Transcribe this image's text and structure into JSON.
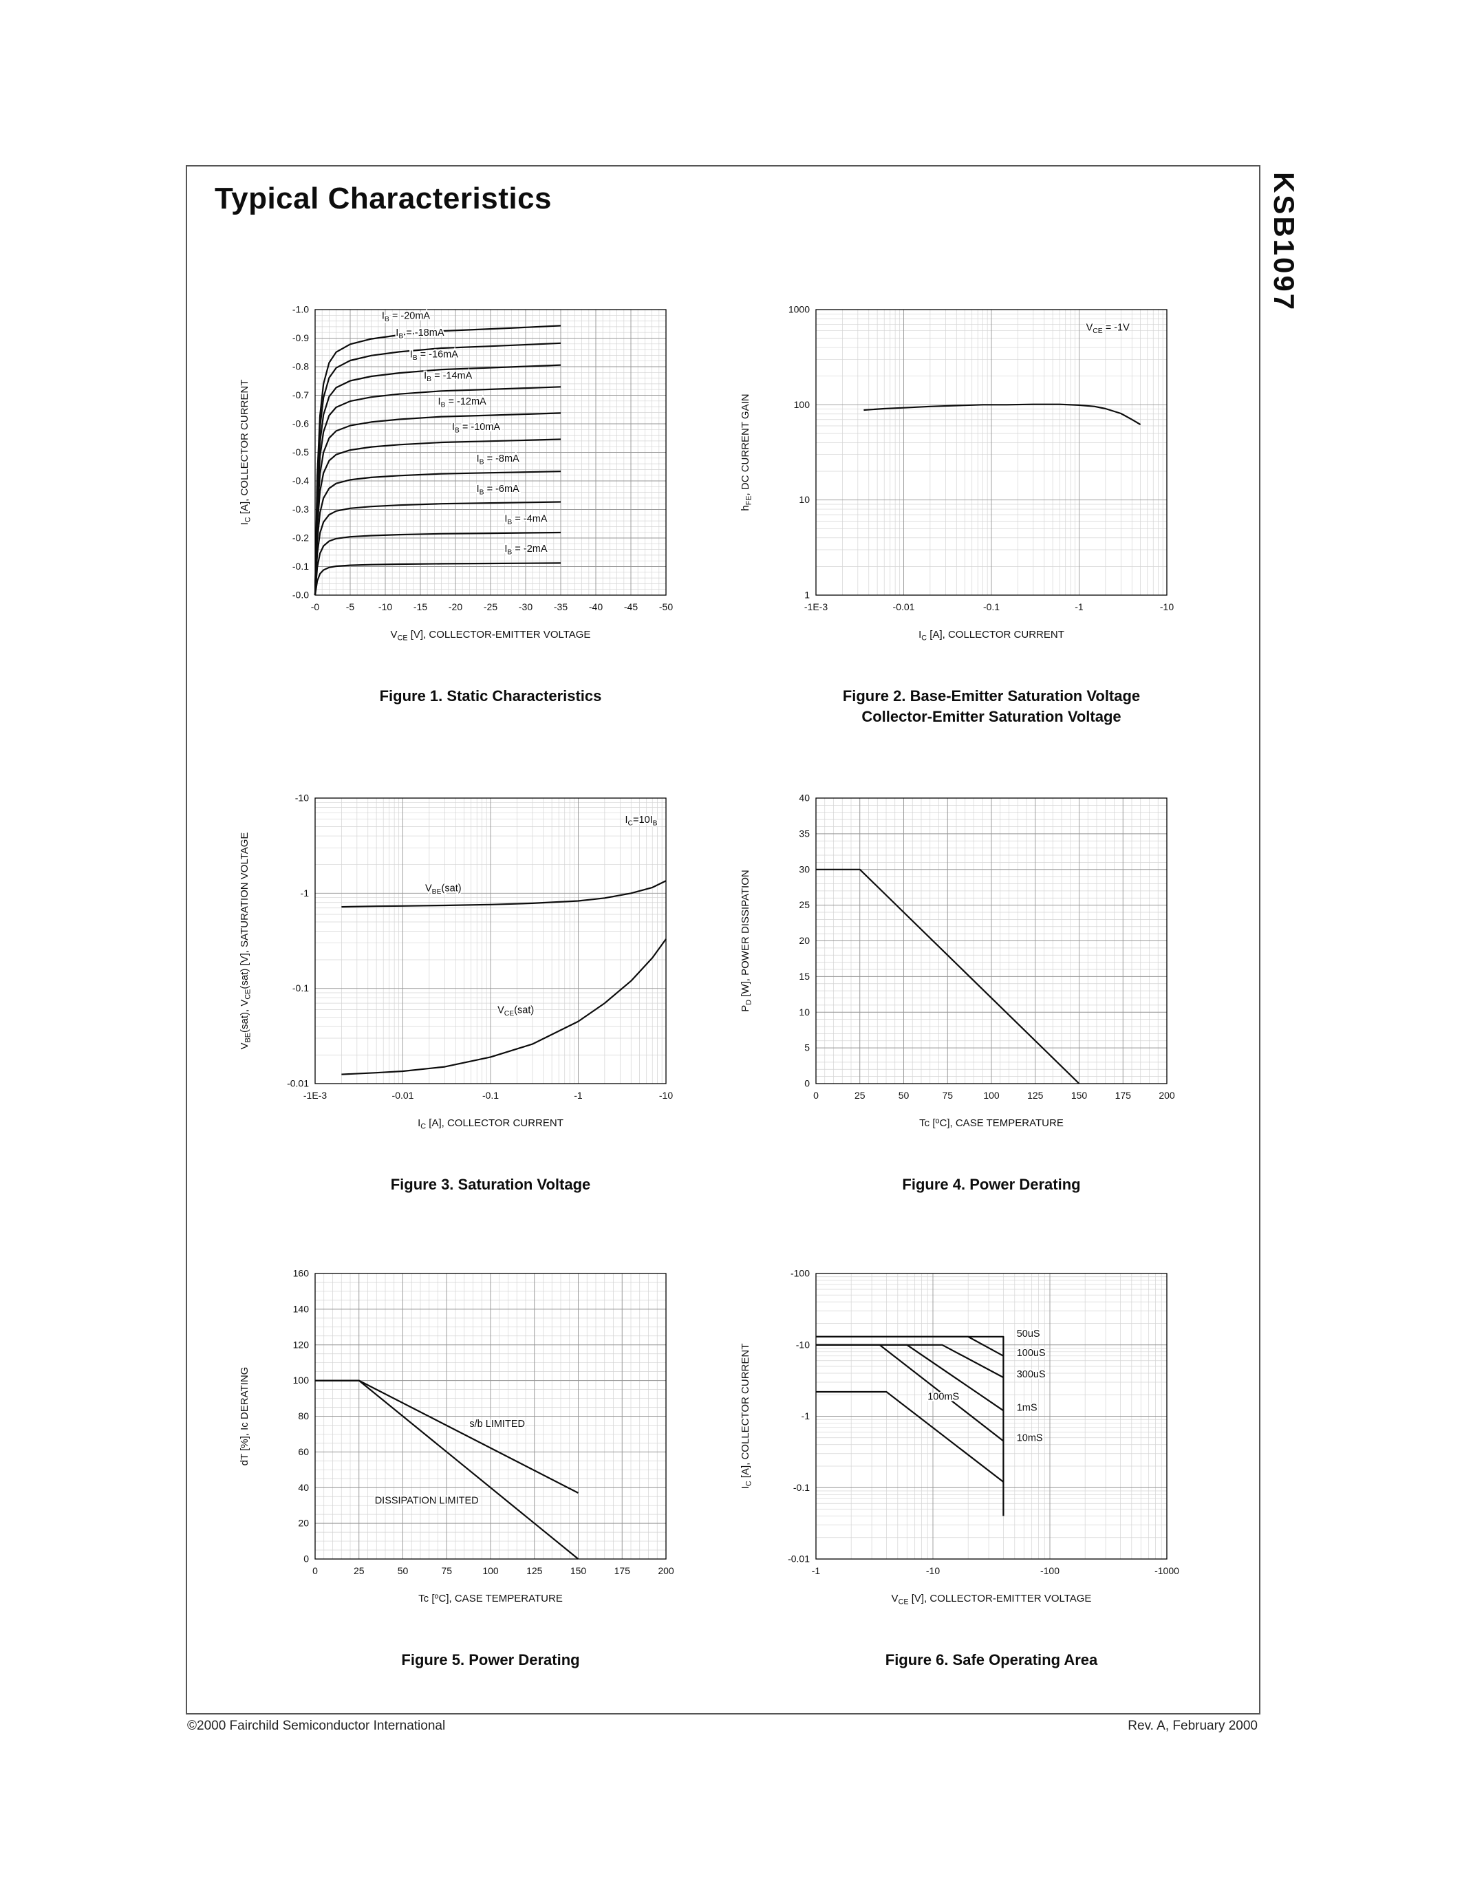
{
  "page": {
    "title": "Typical Characteristics",
    "part_number": "KSB1097",
    "footer_left": "©2000 Fairchild Semiconductor International",
    "footer_right": "Rev. A, February 2000"
  },
  "chart_data": [
    {
      "type": "line",
      "caption": "Figure 1. Static Characteristics",
      "xlabel": "V~CE~ [V], COLLECTOR-EMITTER VOLTAGE",
      "ylabel": "I~C~ [A], COLLECTOR CURRENT",
      "x": {
        "scale": "linear",
        "min": 0,
        "max": 50,
        "minor": 1,
        "ticks": [
          [
            0,
            "-0"
          ],
          [
            5,
            "-5"
          ],
          [
            10,
            "-10"
          ],
          [
            15,
            "-15"
          ],
          [
            20,
            "-20"
          ],
          [
            25,
            "-25"
          ],
          [
            30,
            "-30"
          ],
          [
            35,
            "-35"
          ],
          [
            40,
            "-40"
          ],
          [
            45,
            "-45"
          ],
          [
            50,
            "-50"
          ]
        ]
      },
      "y": {
        "scale": "linear",
        "min": 0,
        "max": 1,
        "minor": 0.02,
        "ticks": [
          [
            0,
            "-0.0"
          ],
          [
            0.1,
            "-0.1"
          ],
          [
            0.2,
            "-0.2"
          ],
          [
            0.3,
            "-0.3"
          ],
          [
            0.4,
            "-0.4"
          ],
          [
            0.5,
            "-0.5"
          ],
          [
            0.6,
            "-0.6"
          ],
          [
            0.7,
            "-0.7"
          ],
          [
            0.8,
            "-0.8"
          ],
          [
            0.9,
            "-0.9"
          ],
          [
            1,
            "-1.0"
          ]
        ]
      },
      "knee_x": [
        0,
        0.3,
        0.7,
        1.2,
        2,
        3,
        5,
        8,
        12,
        18,
        25,
        30,
        35
      ],
      "knee_f": [
        0,
        0.45,
        0.68,
        0.8,
        0.88,
        0.92,
        0.95,
        0.97,
        0.985,
        1,
        1.008,
        1.014,
        1.02
      ],
      "series": [
        {
          "name": "I~B~ = -20mA",
          "sat": 0.925,
          "label_at": [
            9.5,
            0.968
          ],
          "anchor": "start"
        },
        {
          "name": "I~B~ = -18mA",
          "sat": 0.865,
          "label_at": [
            11.5,
            0.908
          ],
          "anchor": "start"
        },
        {
          "name": "I~B~ = -16mA",
          "sat": 0.79,
          "label_at": [
            13.5,
            0.833
          ],
          "anchor": "start"
        },
        {
          "name": "I~B~ = -14mA",
          "sat": 0.715,
          "label_at": [
            15.5,
            0.758
          ],
          "anchor": "start"
        },
        {
          "name": "I~B~ = -12mA",
          "sat": 0.625,
          "label_at": [
            17.5,
            0.668
          ],
          "anchor": "start"
        },
        {
          "name": "I~B~ = -10mA",
          "sat": 0.535,
          "label_at": [
            19.5,
            0.578
          ],
          "anchor": "start"
        },
        {
          "name": "I~B~ = -8mA",
          "sat": 0.425,
          "label_at": [
            23,
            0.468
          ],
          "anchor": "start"
        },
        {
          "name": "I~B~ = -6mA",
          "sat": 0.32,
          "label_at": [
            23,
            0.362
          ],
          "anchor": "start"
        },
        {
          "name": "I~B~ = -4mA",
          "sat": 0.215,
          "label_at": [
            27,
            0.257
          ],
          "anchor": "start"
        },
        {
          "name": "I~B~ = -2mA",
          "sat": 0.11,
          "label_at": [
            27,
            0.152
          ],
          "anchor": "start"
        }
      ]
    },
    {
      "type": "line",
      "caption": "Figure 2. Base-Emitter Saturation Voltage\nCollector-Emitter Saturation Voltage",
      "xlabel": "I~C~ [A], COLLECTOR CURRENT",
      "ylabel": "h~FE~, DC CURRENT GAIN",
      "x": {
        "scale": "log",
        "min": 0.001,
        "max": 10,
        "ticks": [
          [
            0.001,
            "-1E-3"
          ],
          [
            0.01,
            "-0.01"
          ],
          [
            0.1,
            "-0.1"
          ],
          [
            1,
            "-1"
          ],
          [
            10,
            "-10"
          ]
        ]
      },
      "y": {
        "scale": "log",
        "min": 1,
        "max": 1000,
        "ticks": [
          [
            1,
            "1"
          ],
          [
            10,
            "10"
          ],
          [
            100,
            "100"
          ],
          [
            1000,
            "1000"
          ]
        ]
      },
      "annotations": [
        {
          "text": "V~CE~ = -1V",
          "at": [
            1.2,
            600
          ],
          "anchor": "start"
        }
      ],
      "series": [
        {
          "name": "h~FE~",
          "points": [
            [
              0.0035,
              88
            ],
            [
              0.006,
              91
            ],
            [
              0.01,
              93
            ],
            [
              0.02,
              96
            ],
            [
              0.04,
              98
            ],
            [
              0.08,
              100
            ],
            [
              0.15,
              100
            ],
            [
              0.3,
              101
            ],
            [
              0.6,
              101
            ],
            [
              1,
              99
            ],
            [
              1.5,
              96
            ],
            [
              2,
              91
            ],
            [
              3,
              81
            ],
            [
              4,
              70
            ],
            [
              5,
              62
            ]
          ]
        }
      ]
    },
    {
      "type": "line",
      "caption": "Figure 3. Saturation Voltage",
      "xlabel": "I~C~ [A], COLLECTOR CURRENT",
      "ylabel": "V~BE~(sat), V~CE~(sat) [V], SATURATION VOLTAGE",
      "x": {
        "scale": "log",
        "min": 0.001,
        "max": 10,
        "ticks": [
          [
            0.001,
            "-1E-3"
          ],
          [
            0.01,
            "-0.01"
          ],
          [
            0.1,
            "-0.1"
          ],
          [
            1,
            "-1"
          ],
          [
            10,
            "-10"
          ]
        ]
      },
      "y": {
        "scale": "log",
        "min": 0.01,
        "max": 10,
        "ticks": [
          [
            0.01,
            "-0.01"
          ],
          [
            0.1,
            "-0.1"
          ],
          [
            1,
            "-1"
          ],
          [
            10,
            "-10"
          ]
        ]
      },
      "annotations": [
        {
          "text": "I~C~=10I~B~",
          "at": [
            8,
            5.5
          ],
          "anchor": "end"
        }
      ],
      "series": [
        {
          "name": "V~BE~(sat)",
          "points": [
            [
              0.002,
              0.72
            ],
            [
              0.005,
              0.73
            ],
            [
              0.01,
              0.735
            ],
            [
              0.03,
              0.745
            ],
            [
              0.1,
              0.76
            ],
            [
              0.3,
              0.785
            ],
            [
              1,
              0.83
            ],
            [
              2,
              0.89
            ],
            [
              4,
              1.0
            ],
            [
              7,
              1.15
            ],
            [
              10,
              1.35
            ]
          ],
          "label_at": [
            0.018,
            1.05
          ],
          "anchor": "start"
        },
        {
          "name": "V~CE~(sat)",
          "points": [
            [
              0.002,
              0.0125
            ],
            [
              0.005,
              0.013
            ],
            [
              0.01,
              0.0135
            ],
            [
              0.03,
              0.015
            ],
            [
              0.1,
              0.019
            ],
            [
              0.3,
              0.026
            ],
            [
              1,
              0.045
            ],
            [
              2,
              0.07
            ],
            [
              4,
              0.12
            ],
            [
              7,
              0.21
            ],
            [
              10,
              0.33
            ]
          ],
          "label_at": [
            0.12,
            0.055
          ],
          "anchor": "start"
        }
      ]
    },
    {
      "type": "line",
      "caption": "Figure 4. Power Derating",
      "xlabel": "Tc [^o^C], CASE TEMPERATURE",
      "ylabel": "P~D~ [W], POWER DISSIPATION",
      "x": {
        "scale": "linear",
        "min": 0,
        "max": 200,
        "minor": 5,
        "ticks": [
          [
            0,
            "0"
          ],
          [
            25,
            "25"
          ],
          [
            50,
            "50"
          ],
          [
            75,
            "75"
          ],
          [
            100,
            "100"
          ],
          [
            125,
            "125"
          ],
          [
            150,
            "150"
          ],
          [
            175,
            "175"
          ],
          [
            200,
            "200"
          ]
        ]
      },
      "y": {
        "scale": "linear",
        "min": 0,
        "max": 40,
        "minor": 1,
        "ticks": [
          [
            0,
            "0"
          ],
          [
            5,
            "5"
          ],
          [
            10,
            "10"
          ],
          [
            15,
            "15"
          ],
          [
            20,
            "20"
          ],
          [
            25,
            "25"
          ],
          [
            30,
            "30"
          ],
          [
            35,
            "35"
          ],
          [
            40,
            "40"
          ]
        ]
      },
      "series": [
        {
          "name": "P~D~",
          "points": [
            [
              0,
              30
            ],
            [
              25,
              30
            ],
            [
              150,
              0
            ]
          ]
        }
      ]
    },
    {
      "type": "line",
      "caption": "Figure 5. Power Derating",
      "xlabel": "Tc [^o^C], CASE TEMPERATURE",
      "ylabel": "dT [%], Ic DERATING",
      "x": {
        "scale": "linear",
        "min": 0,
        "max": 200,
        "minor": 5,
        "ticks": [
          [
            0,
            "0"
          ],
          [
            25,
            "25"
          ],
          [
            50,
            "50"
          ],
          [
            75,
            "75"
          ],
          [
            100,
            "100"
          ],
          [
            125,
            "125"
          ],
          [
            150,
            "150"
          ],
          [
            175,
            "175"
          ],
          [
            200,
            "200"
          ]
        ]
      },
      "y": {
        "scale": "linear",
        "min": 0,
        "max": 160,
        "minor": 5,
        "ticks": [
          [
            0,
            "0"
          ],
          [
            20,
            "20"
          ],
          [
            40,
            "40"
          ],
          [
            60,
            "60"
          ],
          [
            80,
            "80"
          ],
          [
            100,
            "100"
          ],
          [
            120,
            "120"
          ],
          [
            140,
            "140"
          ],
          [
            160,
            "160"
          ]
        ]
      },
      "series": [
        {
          "name": "s/b LIMITED",
          "points": [
            [
              0,
              100
            ],
            [
              25,
              100
            ],
            [
              150,
              37
            ]
          ],
          "label_at": [
            88,
            74
          ],
          "anchor": "start"
        },
        {
          "name": "DISSIPATION LIMITED",
          "points": [
            [
              0,
              100
            ],
            [
              25,
              100
            ],
            [
              150,
              0
            ]
          ],
          "label_at": [
            34,
            31
          ],
          "anchor": "start"
        }
      ]
    },
    {
      "type": "line",
      "caption": "Figure 6. Safe Operating Area",
      "xlabel": "V~CE~ [V], COLLECTOR-EMITTER VOLTAGE",
      "ylabel": "I~C~ [A], COLLECTOR CURRENT",
      "x": {
        "scale": "log",
        "min": 1,
        "max": 1000,
        "ticks": [
          [
            1,
            "-1"
          ],
          [
            10,
            "-10"
          ],
          [
            100,
            "-100"
          ],
          [
            1000,
            "-1000"
          ]
        ]
      },
      "y": {
        "scale": "log",
        "min": 0.01,
        "max": 100,
        "ticks": [
          [
            0.01,
            "-0.01"
          ],
          [
            0.1,
            "-0.1"
          ],
          [
            1,
            "-1"
          ],
          [
            10,
            "-10"
          ],
          [
            100,
            "-100"
          ]
        ]
      },
      "series": [
        {
          "name": "50uS",
          "points": [
            [
              1,
              13
            ],
            [
              40,
              13
            ],
            [
              40,
              0.04
            ]
          ],
          "label_at": [
            52,
            13
          ],
          "anchor": "start"
        },
        {
          "name": "100uS",
          "points": [
            [
              1,
              13
            ],
            [
              20,
              13
            ],
            [
              40,
              7
            ]
          ],
          "label_at": [
            52,
            7
          ],
          "anchor": "start"
        },
        {
          "name": "300uS",
          "points": [
            [
              1,
              10
            ],
            [
              12,
              10
            ],
            [
              40,
              3.5
            ]
          ],
          "label_at": [
            52,
            3.5
          ],
          "anchor": "start"
        },
        {
          "name": "1mS",
          "points": [
            [
              1,
              10
            ],
            [
              6,
              10
            ],
            [
              40,
              1.2
            ]
          ],
          "label_at": [
            52,
            1.2
          ],
          "anchor": "start"
        },
        {
          "name": "10mS",
          "points": [
            [
              1,
              10
            ],
            [
              3.5,
              10
            ],
            [
              40,
              0.45
            ]
          ],
          "label_at": [
            52,
            0.45
          ],
          "anchor": "start"
        },
        {
          "name": "100mS",
          "points": [
            [
              1,
              2.2
            ],
            [
              4,
              2.2
            ],
            [
              40,
              0.12
            ]
          ],
          "label_at": [
            9,
            1.7
          ],
          "anchor": "start"
        }
      ]
    }
  ]
}
